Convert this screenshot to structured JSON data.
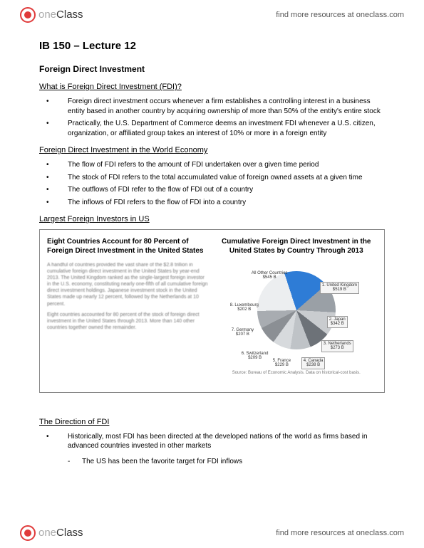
{
  "header": {
    "brand_one": "one",
    "brand_class": "Class",
    "link_text": "find more resources at oneclass.com"
  },
  "footer": {
    "brand_one": "one",
    "brand_class": "Class",
    "link_text": "find more resources at oneclass.com"
  },
  "page": {
    "title": "IB 150 – Lecture 12",
    "subtitle": "Foreign Direct Investment"
  },
  "sections": {
    "s1": {
      "heading": "What is Foreign Direct Investment (FDI)?",
      "bullets": [
        "Foreign direct investment occurs whenever a firm establishes a controlling interest in a business entity based in another country by acquiring ownership of more than 50% of the entity's entire stock",
        "Practically, the U.S. Department of Commerce deems an investment FDI whenever a U.S. citizen, organization, or affiliated group takes an interest of 10% or more in a foreign entity"
      ]
    },
    "s2": {
      "heading": "Foreign Direct Investment in the World Economy",
      "bullets": [
        "The flow of FDI refers to the amount of FDI undertaken over a given time period",
        "The stock of FDI refers to the total accumulated value of foreign owned assets at a given time",
        "The outflows of FDI refer to the flow of FDI out of a country",
        "The inflows of FDI refers to the flow of FDI into a country"
      ]
    },
    "s3": {
      "heading": "Largest Foreign Investors in US"
    },
    "s4": {
      "heading": "The Direction of FDI",
      "bullets": [
        "Historically, most FDI has been directed at the developed nations of the world as firms based in advanced countries invested in other markets"
      ],
      "sub": [
        "The US has been the favorite target for FDI inflows"
      ]
    }
  },
  "chart": {
    "left_title": "Eight Countries Account for 80 Percent of Foreign Direct Investment in the United States",
    "left_para1": "A handful of countries provided the vast share of the $2.8 trillion in cumulative foreign direct investment in the United States by year-end 2013. The United Kingdom ranked as the single-largest foreign investor in the U.S. economy, constituting nearly one-fifth of all cumulative foreign direct investment holdings. Japanese investment stock in the United States made up nearly 12 percent, followed by the Netherlands at 10 percent.",
    "left_para2": "Eight countries accounted for 80 percent of the stock of foreign direct investment in the United States through 2013. More than 140 other countries together owned the remainder.",
    "right_title": "Cumulative Foreign Direct Investment in the United States by Country Through 2013",
    "note": "Source: Bureau of Economic Analysis. Data on historical-cost basis.",
    "pie": {
      "slices": [
        {
          "label": "1. United Kingdom",
          "value": "$519 B",
          "color": "#2e7cd6",
          "deg": 67
        },
        {
          "label": "2. Japan",
          "value": "$342 B",
          "color": "#9aa0a6",
          "deg": 44
        },
        {
          "label": "3. Netherlands",
          "value": "$273 B",
          "color": "#c9cccf",
          "deg": 35
        },
        {
          "label": "4. Canada",
          "value": "$238 B",
          "color": "#6d7278",
          "deg": 31
        },
        {
          "label": "5. France",
          "value": "$229 B",
          "color": "#bfc3c7",
          "deg": 30
        },
        {
          "label": "6. Switzerland",
          "value": "$209 B",
          "color": "#d7dadd",
          "deg": 27
        },
        {
          "label": "7. Germany",
          "value": "$207 B",
          "color": "#8b8f94",
          "deg": 27
        },
        {
          "label": "8. Luxembourg",
          "value": "$202 B",
          "color": "#a8acb1",
          "deg": 26
        },
        {
          "label": "All Other Countries",
          "value": "$545 B",
          "color": "#eceef0",
          "deg": 73
        }
      ]
    }
  }
}
